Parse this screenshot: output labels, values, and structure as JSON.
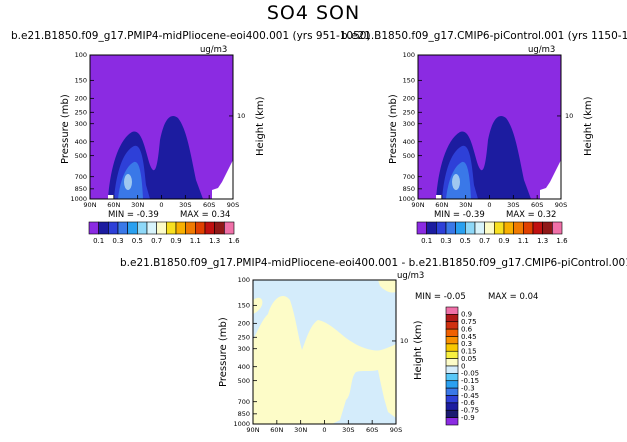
{
  "figure_title": "SO4 SON",
  "colors": {
    "purple": "#8b2be2",
    "navy": "#1c1ca0",
    "blue_dark": "#2e40d8",
    "blue_mid": "#3a78e8",
    "light_blue": "#9fc8f0",
    "cream": "#fdfcc8",
    "pale_blue": "#d4ecfb"
  },
  "chart_data": [
    {
      "type": "heatmap",
      "title": "b.e21.B1850.f09_g17.PMIP4-midPliocene-eoi400.001 (yrs 951-1050)",
      "units": "ug/m3",
      "ylabel": "Pressure (mb)",
      "ylabel_right": "Height (km)",
      "x_ticks": [
        "90N",
        "60N",
        "30N",
        "0",
        "30S",
        "60S",
        "90S"
      ],
      "y_ticks": [
        "100",
        "150",
        "200",
        "250",
        "300",
        "400",
        "500",
        "700",
        "850",
        "1000"
      ],
      "y_ticks_right": [
        "10"
      ],
      "min_label": "MIN =",
      "min": -0.39,
      "max_label": "MAX =",
      "max": 0.34
    },
    {
      "type": "heatmap",
      "title": "b.e21.B1850.f09_g17.CMIP6-piControl.001 (yrs 1150-1199)",
      "units": "ug/m3",
      "ylabel": "Pressure (mb)",
      "ylabel_right": "Height (km)",
      "x_ticks": [
        "90N",
        "60N",
        "30N",
        "0",
        "30S",
        "60S",
        "90S"
      ],
      "y_ticks": [
        "100",
        "150",
        "200",
        "250",
        "300",
        "400",
        "500",
        "700",
        "850",
        "1000"
      ],
      "y_ticks_right": [
        "10"
      ],
      "min_label": "MIN =",
      "min": -0.39,
      "max_label": "MAX =",
      "max": 0.32
    },
    {
      "type": "heatmap",
      "title": "b.e21.B1850.f09_g17.PMIP4-midPliocene-eoi400.001 - b.e21.B1850.f09_g17.CMIP6-piControl.001",
      "units": "ug/m3",
      "ylabel": "Pressure (mb)",
      "ylabel_right": "Height (km)",
      "x_ticks": [
        "90N",
        "60N",
        "30N",
        "0",
        "30S",
        "60S",
        "90S"
      ],
      "y_ticks": [
        "100",
        "150",
        "200",
        "250",
        "300",
        "400",
        "500",
        "700",
        "850",
        "1000"
      ],
      "y_ticks_right": [
        "10"
      ],
      "min_label": "MIN =",
      "min": -0.05,
      "max_label": "MAX =",
      "max": 0.04
    }
  ],
  "colorbar_top": {
    "labels": [
      "0.1",
      "0.3",
      "0.5",
      "0.7",
      "0.9",
      "1.1",
      "1.3",
      "1.6"
    ],
    "colors": [
      "#8b2be2",
      "#1c1ca0",
      "#2e40d8",
      "#3a78e8",
      "#2aa0f0",
      "#8ed8f8",
      "#d8f4fc",
      "#fdfcc8",
      "#f8e020",
      "#f8b000",
      "#f07a00",
      "#e04000",
      "#c01010",
      "#901818",
      "#f070a8"
    ]
  },
  "colorbar_diff": {
    "labels": [
      "0.9",
      "0.75",
      "0.6",
      "0.45",
      "0.3",
      "0.15",
      "0.05",
      "0",
      "-0.05",
      "-0.15",
      "-0.3",
      "-0.45",
      "-0.6",
      "-0.75",
      "-0.9"
    ],
    "colors": [
      "#f070a8",
      "#b01818",
      "#d03010",
      "#f06000",
      "#f89000",
      "#f8c800",
      "#f8f040",
      "#fdfcc8",
      "#d4ecfb",
      "#58c8f8",
      "#2aa0f0",
      "#3a78e8",
      "#2e40d8",
      "#1c1ca0",
      "#1a1a70",
      "#8b2be2"
    ]
  }
}
